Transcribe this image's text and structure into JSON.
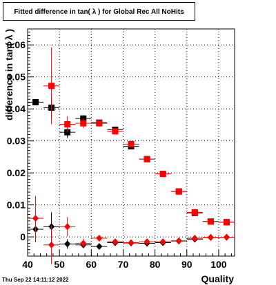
{
  "title": "Fitted difference in tan( λ ) for Global Rec All NoHits",
  "timestamp": "Thu Sep 22 14:11:12 2022",
  "chart_data": {
    "type": "scatter",
    "title": "Fitted difference in tan( λ ) for Global Rec All NoHits",
    "xlabel": "Quality",
    "ylabel": "difference in tan( λ )",
    "xlim": [
      40,
      105
    ],
    "ylim": [
      -0.006,
      0.065
    ],
    "xticks": [
      40,
      50,
      60,
      70,
      80,
      90,
      100
    ],
    "yticks": [
      0,
      0.01,
      0.02,
      0.03,
      0.04,
      0.05,
      0.06
    ],
    "ytick_labels": [
      "0",
      "0.01",
      "0.02",
      "0.03",
      "0.04",
      "0.05",
      "0.06"
    ],
    "grid": true,
    "series": [
      {
        "marker": "square",
        "color": "#000000",
        "x": [
          42.5,
          47.5,
          52.5,
          57.5,
          62.5,
          67.5,
          72.5,
          77.5,
          82.5,
          87.5,
          92.5,
          97.5,
          102.5
        ],
        "y": [
          0.0421,
          0.0404,
          0.0327,
          0.037,
          0.0357,
          0.0335,
          0.0283,
          0.0243,
          0.0197,
          0.0142,
          0.0075,
          0.0048,
          0.0046
        ],
        "yerr": [
          0.0,
          0.0035,
          0.0018,
          0.001,
          0.0007,
          0.0005,
          0.0004,
          0.0003,
          0.0003,
          0.0003,
          0.0003,
          0.0003,
          0.0003
        ]
      },
      {
        "marker": "square",
        "color": "#ff0000",
        "x": [
          47.5,
          52.5,
          57.5,
          62.5,
          67.5,
          72.5,
          77.5,
          82.5,
          87.5,
          92.5,
          97.5,
          102.5
        ],
        "y": [
          0.0472,
          0.0352,
          0.0355,
          0.0355,
          0.033,
          0.029,
          0.0243,
          0.0197,
          0.0142,
          0.0077,
          0.0048,
          0.0046
        ],
        "yerr": [
          0.012,
          0.0025,
          0.0015,
          0.001,
          0.0006,
          0.0004,
          0.0003,
          0.0003,
          0.0003,
          0.0003,
          0.0003,
          0.0003
        ]
      },
      {
        "marker": "diamond",
        "color": "#000000",
        "x": [
          42.5,
          47.5,
          52.5,
          57.5,
          62.5,
          67.5,
          72.5,
          77.5,
          82.5,
          87.5,
          92.5,
          97.5,
          102.5
        ],
        "y": [
          0.0024,
          0.0032,
          -0.0022,
          -0.0025,
          -0.003,
          -0.0018,
          -0.0019,
          -0.002,
          -0.0018,
          -0.0013,
          -0.0007,
          -0.0002,
          -0.0001
        ],
        "yerr": [
          0.004,
          0.0045,
          0.0015,
          0.001,
          0.0007,
          0.0005,
          0.0004,
          0.0003,
          0.0003,
          0.0003,
          0.0003,
          0.0003,
          0.0003
        ]
      },
      {
        "marker": "diamond",
        "color": "#ff0000",
        "x": [
          42.5,
          47.5,
          52.5,
          57.5,
          62.5,
          67.5,
          72.5,
          77.5,
          82.5,
          87.5,
          92.5,
          97.5,
          102.5
        ],
        "y": [
          0.0058,
          -0.0025,
          0.0032,
          -0.002,
          -0.0004,
          -0.0015,
          -0.0018,
          -0.0015,
          -0.0015,
          -0.0012,
          -0.0004,
          -0.0001,
          -0.0001
        ],
        "yerr": [
          0.007,
          0.006,
          0.003,
          0.0015,
          0.001,
          0.0006,
          0.0004,
          0.0003,
          0.0003,
          0.0003,
          0.0003,
          0.0003,
          0.0003
        ]
      }
    ]
  }
}
